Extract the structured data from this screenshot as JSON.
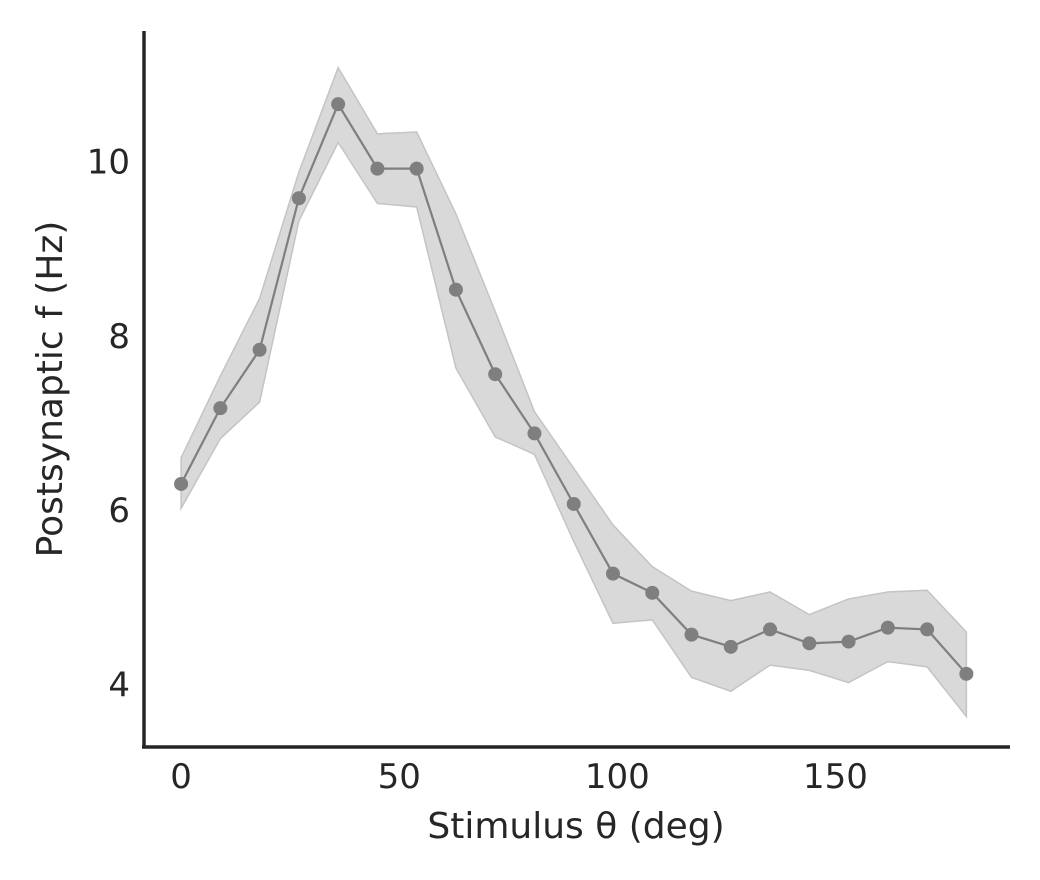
{
  "chart_data": {
    "type": "line",
    "xlabel": "Stimulus θ (deg)",
    "ylabel": "Postsynaptic f (Hz)",
    "xlim": [
      -8.5,
      190
    ],
    "ylim": [
      3.28,
      11.5
    ],
    "xticks": [
      0,
      50,
      100,
      150
    ],
    "yticks": [
      4,
      6,
      8,
      10
    ],
    "grid": false,
    "colors": {
      "line": "#7f7f7f",
      "band": "#d9d9d9",
      "axis": "#262626"
    },
    "series": [
      {
        "x": [
          0,
          9,
          18,
          27,
          36,
          45,
          54,
          63,
          72,
          81,
          90,
          99,
          108,
          117,
          126,
          135,
          144,
          153,
          162,
          171,
          180
        ],
        "y": [
          6.3,
          7.17,
          7.84,
          9.58,
          10.66,
          9.92,
          9.92,
          8.53,
          7.56,
          6.88,
          6.07,
          5.27,
          5.05,
          4.57,
          4.43,
          4.63,
          4.47,
          4.49,
          4.65,
          4.63,
          4.12
        ],
        "lower": [
          6.02,
          6.82,
          7.24,
          9.32,
          10.22,
          9.52,
          9.48,
          7.63,
          6.84,
          6.64,
          5.64,
          4.7,
          4.74,
          4.08,
          3.92,
          4.22,
          4.16,
          4.02,
          4.26,
          4.2,
          3.63
        ],
        "upper": [
          6.6,
          7.54,
          8.43,
          9.88,
          11.08,
          10.32,
          10.34,
          9.4,
          8.28,
          7.13,
          6.48,
          5.83,
          5.35,
          5.07,
          4.96,
          5.06,
          4.8,
          4.98,
          5.06,
          5.08,
          4.6
        ]
      }
    ]
  }
}
